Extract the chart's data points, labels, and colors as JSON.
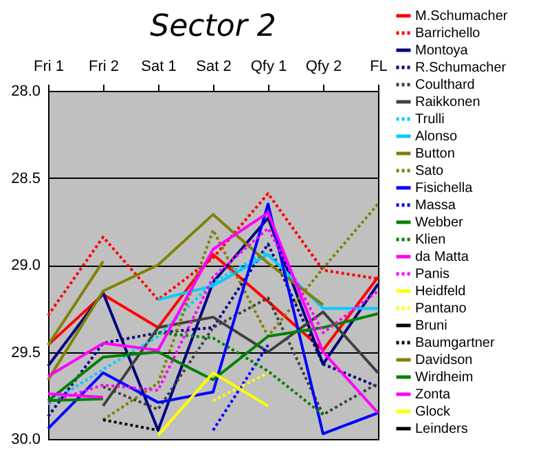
{
  "chart_data": {
    "type": "line",
    "title": "Sector 2",
    "categories": [
      "Fri 1",
      "Fri 2",
      "Sat 1",
      "Sat 2",
      "Qfy 1",
      "Qfy 2",
      "FL"
    ],
    "ylim": [
      30,
      28
    ],
    "yticks": [
      {
        "value": 28,
        "label": "28.0"
      },
      {
        "value": 28.5,
        "label": "28.5"
      },
      {
        "value": 29,
        "label": "29.0"
      },
      {
        "value": 29.5,
        "label": "29.5"
      },
      {
        "value": 30,
        "label": "30.0"
      }
    ],
    "grid": "y",
    "legend": "right",
    "marker": "none",
    "series": [
      {
        "name": "M.Schumacher",
        "color": "#ff0000",
        "line_style": "solid",
        "values": [
          29.46,
          29.17,
          29.36,
          28.94,
          29.21,
          29.49,
          29.07
        ]
      },
      {
        "name": "Barrichello",
        "color": "#ff0000",
        "line_style": "dotted",
        "values": [
          29.29,
          28.84,
          29.2,
          28.96,
          28.59,
          29.03,
          29.08
        ]
      },
      {
        "name": "Montoya",
        "color": "#000080",
        "line_style": "solid",
        "values": [
          29.58,
          29.16,
          29.95,
          29.1,
          28.73,
          29.57,
          29.11
        ]
      },
      {
        "name": "R.Schumacher",
        "color": "#000080",
        "line_style": "dotted",
        "values": [
          29.87,
          29.45,
          29.39,
          29.36,
          28.88,
          29.57,
          29.7
        ]
      },
      {
        "name": "Coulthard",
        "color": "#404040",
        "line_style": "dotted",
        "values": [
          null,
          29.7,
          29.83,
          29.36,
          29.19,
          29.86,
          29.68
        ]
      },
      {
        "name": "Raikkonen",
        "color": "#404040",
        "line_style": "solid",
        "values": [
          null,
          29.81,
          29.36,
          29.3,
          29.5,
          29.27,
          29.62
        ]
      },
      {
        "name": "Trulli",
        "color": "#00ccff",
        "line_style": "dotted",
        "values": [
          29.8,
          29.6,
          29.41,
          29.1,
          28.92,
          null,
          null
        ]
      },
      {
        "name": "Alonso",
        "color": "#00ccff",
        "line_style": "solid",
        "values": [
          null,
          null,
          29.2,
          29.12,
          28.94,
          29.25,
          29.25
        ]
      },
      {
        "name": "Button",
        "color": "#808000",
        "line_style": "solid",
        "values": [
          29.66,
          29.15,
          29.0,
          28.71,
          28.99,
          29.23,
          null
        ]
      },
      {
        "name": "Sato",
        "color": "#808000",
        "line_style": "dotted",
        "values": [
          null,
          29.89,
          29.68,
          28.8,
          29.41,
          29.02,
          28.65
        ]
      },
      {
        "name": "Fisichella",
        "color": "#0000ff",
        "line_style": "solid",
        "values": [
          29.94,
          29.62,
          29.79,
          29.73,
          28.65,
          29.97,
          29.85
        ]
      },
      {
        "name": "Massa",
        "color": "#0000ff",
        "line_style": "dotted",
        "values": [
          null,
          null,
          null,
          29.95,
          29.46,
          null,
          null
        ]
      },
      {
        "name": "Webber",
        "color": "#008000",
        "line_style": "solid",
        "values": [
          29.78,
          29.53,
          29.5,
          29.66,
          29.41,
          29.36,
          29.28
        ]
      },
      {
        "name": "Klien",
        "color": "#008000",
        "line_style": "dotted",
        "values": [
          null,
          null,
          29.39,
          29.42,
          29.61,
          29.86,
          null
        ]
      },
      {
        "name": "da Matta",
        "color": "#ff00ff",
        "line_style": "solid",
        "values": [
          29.64,
          29.45,
          29.49,
          28.91,
          28.7,
          29.5,
          29.85
        ]
      },
      {
        "name": "Panis",
        "color": "#ff00ff",
        "line_style": "dotted",
        "values": [
          29.79,
          29.69,
          29.72,
          29.07,
          28.79,
          29.39,
          29.15
        ]
      },
      {
        "name": "Heidfeld",
        "color": "#ffff00",
        "line_style": "solid",
        "values": [
          null,
          null,
          29.98,
          29.62,
          29.81,
          null,
          null
        ]
      },
      {
        "name": "Pantano",
        "color": "#ffff00",
        "line_style": "dotted",
        "values": [
          null,
          null,
          null,
          29.78,
          29.62,
          null,
          null
        ]
      },
      {
        "name": "Bruni",
        "color": "#000000",
        "line_style": "solid",
        "values": [
          null,
          null,
          null,
          null,
          null,
          null,
          null
        ]
      },
      {
        "name": "Baumgartner",
        "color": "#000000",
        "line_style": "dotted",
        "values": [
          null,
          29.89,
          29.95,
          null,
          null,
          null,
          null
        ]
      },
      {
        "name": "Davidson",
        "color": "#808000",
        "line_style": "solid",
        "values": [
          29.46,
          28.98,
          null,
          null,
          null,
          null,
          null
        ]
      },
      {
        "name": "Wirdheim",
        "color": "#008000",
        "line_style": "solid",
        "values": [
          29.78,
          29.77,
          null,
          null,
          null,
          null,
          null
        ]
      },
      {
        "name": "Zonta",
        "color": "#ff00ff",
        "line_style": "solid",
        "values": [
          29.74,
          29.76,
          null,
          null,
          null,
          null,
          null
        ]
      },
      {
        "name": "Glock",
        "color": "#ffff00",
        "line_style": "solid",
        "values": [
          null,
          null,
          null,
          null,
          null,
          null,
          null
        ]
      },
      {
        "name": "Leinders",
        "color": "#000000",
        "line_style": "solid",
        "values": [
          null,
          null,
          null,
          null,
          null,
          null,
          null
        ]
      }
    ]
  }
}
